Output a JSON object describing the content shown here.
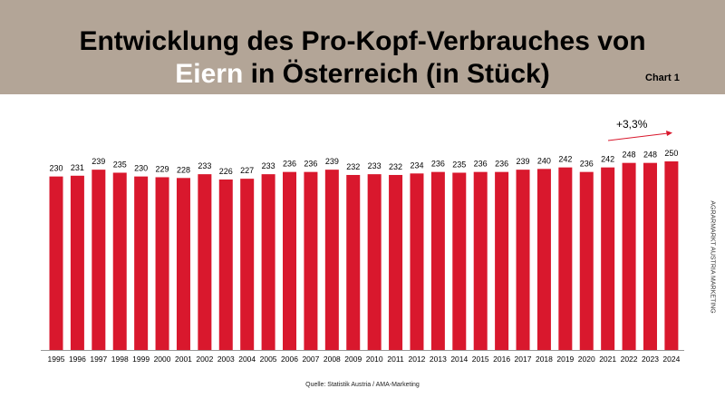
{
  "header": {
    "title_part1": "Entwicklung des Pro-Kopf-Verbrauches von",
    "title_highlight": "Eiern",
    "title_part2": " in Österreich (in Stück)",
    "chart_label": "Chart 1"
  },
  "side_text": "AGRARMARKT AUSTRIA MARKETING",
  "source": "Quelle: Statistik Austria / AMA-Marketing",
  "colors": {
    "bar": "#d9182d",
    "header_bg": "#b3a597",
    "arrow": "#d9182d"
  },
  "chart_data": {
    "type": "bar",
    "title": "Entwicklung des Pro-Kopf-Verbrauches von Eiern in Österreich (in Stück)",
    "categories": [
      "1995",
      "1996",
      "1997",
      "1998",
      "1999",
      "2000",
      "2001",
      "2002",
      "2003",
      "2004",
      "2005",
      "2006",
      "2007",
      "2008",
      "2009",
      "2010",
      "2011",
      "2012",
      "2013",
      "2014",
      "2015",
      "2016",
      "2017",
      "2018",
      "2019",
      "2020",
      "2021",
      "2022",
      "2023",
      "2024"
    ],
    "values": [
      230,
      231,
      239,
      235,
      230,
      229,
      228,
      233,
      226,
      227,
      233,
      236,
      236,
      239,
      232,
      233,
      232,
      234,
      236,
      235,
      236,
      236,
      239,
      240,
      242,
      236,
      242,
      248,
      248,
      250
    ],
    "ylim": [
      0,
      250
    ],
    "grid": false,
    "data_labels": true,
    "annotation": "+3,3%"
  }
}
